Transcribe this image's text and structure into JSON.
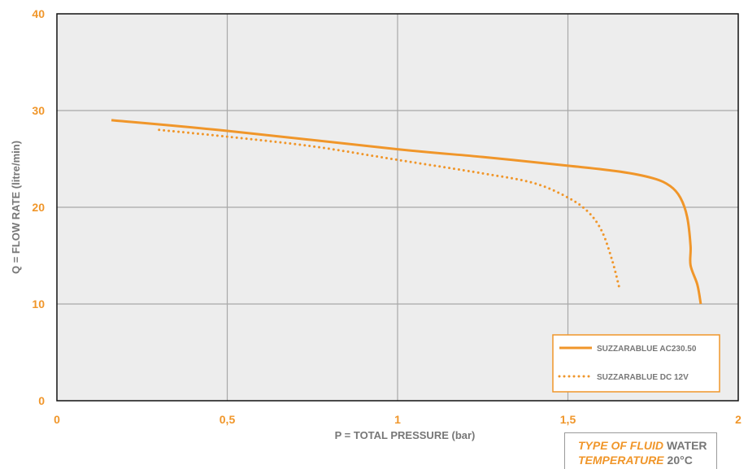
{
  "chart_data": {
    "type": "line",
    "title": "",
    "xlabel": "P = TOTAL PRESSURE (bar)",
    "ylabel": "Q = FLOW RATE (litre/min)",
    "xlim": [
      0,
      2
    ],
    "ylim": [
      0,
      40
    ],
    "x_ticks": [
      0,
      0.5,
      1,
      1.5,
      2
    ],
    "x_tick_labels": [
      "0",
      "0,5",
      "1",
      "1,5",
      "2"
    ],
    "y_ticks": [
      0,
      10,
      20,
      30,
      40
    ],
    "y_tick_labels": [
      "0",
      "10",
      "20",
      "30",
      "40"
    ],
    "grid": true,
    "legend_position": "bottom-right",
    "series": [
      {
        "name": "SUZZARABLUE AC230.50",
        "style": "solid",
        "color": "#f0962a",
        "points": [
          [
            0.16,
            29.0
          ],
          [
            0.5,
            27.9
          ],
          [
            1.0,
            26.0
          ],
          [
            1.25,
            25.2
          ],
          [
            1.5,
            24.3
          ],
          [
            1.65,
            23.7
          ],
          [
            1.75,
            23.0
          ],
          [
            1.8,
            22.2
          ],
          [
            1.83,
            21.0
          ],
          [
            1.85,
            19.0
          ],
          [
            1.86,
            16.0
          ],
          [
            1.86,
            14.0
          ],
          [
            1.88,
            12.0
          ],
          [
            1.89,
            10.0
          ]
        ]
      },
      {
        "name": "SUZZARABLUE DC 12V",
        "style": "dotted",
        "color": "#f0962a",
        "points": [
          [
            0.3,
            28.0
          ],
          [
            0.5,
            27.3
          ],
          [
            0.75,
            26.3
          ],
          [
            1.0,
            24.9
          ],
          [
            1.25,
            23.5
          ],
          [
            1.4,
            22.5
          ],
          [
            1.5,
            21.0
          ],
          [
            1.56,
            19.5
          ],
          [
            1.6,
            17.5
          ],
          [
            1.63,
            14.5
          ],
          [
            1.65,
            11.8
          ]
        ]
      }
    ]
  },
  "info": {
    "fluid_label": "TYPE OF FLUID",
    "fluid_value": "WATER",
    "temp_label": "TEMPERATURE",
    "temp_value": "20°C"
  }
}
